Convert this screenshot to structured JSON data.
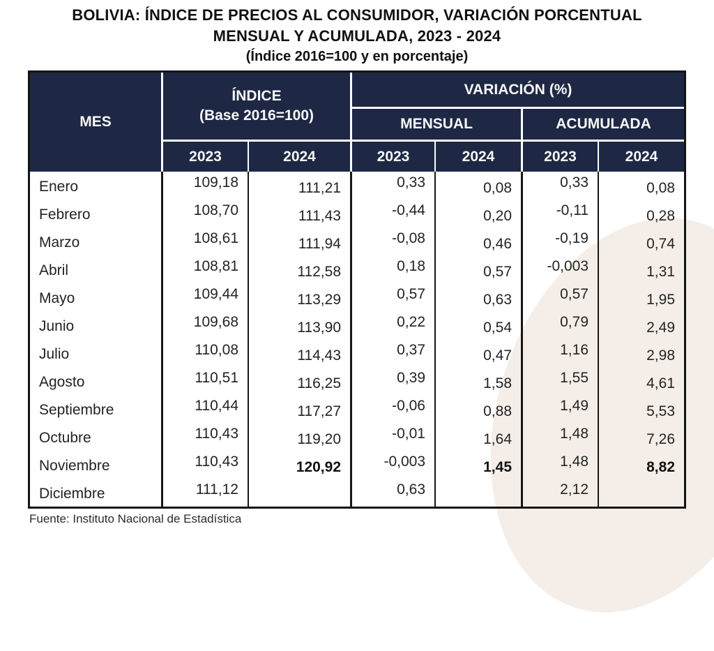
{
  "title": {
    "line1": "BOLIVIA: ÍNDICE DE PRECIOS AL CONSUMIDOR, VARIACIÓN PORCENTUAL",
    "line2": "MENSUAL Y ACUMULADA, 2023 - 2024",
    "subtitle": "(Índice 2016=100 y en porcentaje)"
  },
  "source": "Fuente: Instituto Nacional de Estadística",
  "colors": {
    "header_bg": "#1e2844",
    "header_text": "#f7f7f7",
    "border": "#141414",
    "body_text": "#232323",
    "watermark": "#f5eee8"
  },
  "table": {
    "columns": [
      "mes",
      "indice_2023",
      "indice_2024",
      "mensual_2023",
      "mensual_2024",
      "acumulada_2023",
      "acumulada_2024"
    ],
    "headers": {
      "mes": "MES",
      "indice_title": "ÍNDICE",
      "indice_base": "(Base 2016=100)",
      "variacion": "VARIACIÓN (%)",
      "mensual": "MENSUAL",
      "acumulada": "ACUMULADA",
      "years": [
        "2023",
        "2024",
        "2023",
        "2024",
        "2023",
        "2024"
      ]
    },
    "rows": [
      {
        "mes": "Enero",
        "indice_2023": "109,18",
        "indice_2024": "111,21",
        "mensual_2023": "0,33",
        "mensual_2024": "0,08",
        "acumulada_2023": "0,33",
        "acumulada_2024": "0,08"
      },
      {
        "mes": "Febrero",
        "indice_2023": "108,70",
        "indice_2024": "111,43",
        "mensual_2023": "-0,44",
        "mensual_2024": "0,20",
        "acumulada_2023": "-0,11",
        "acumulada_2024": "0,28"
      },
      {
        "mes": "Marzo",
        "indice_2023": "108,61",
        "indice_2024": "111,94",
        "mensual_2023": "-0,08",
        "mensual_2024": "0,46",
        "acumulada_2023": "-0,19",
        "acumulada_2024": "0,74"
      },
      {
        "mes": "Abril",
        "indice_2023": "108,81",
        "indice_2024": "112,58",
        "mensual_2023": "0,18",
        "mensual_2024": "0,57",
        "acumulada_2023": "-0,003",
        "acumulada_2024": "1,31"
      },
      {
        "mes": "Mayo",
        "indice_2023": "109,44",
        "indice_2024": "113,29",
        "mensual_2023": "0,57",
        "mensual_2024": "0,63",
        "acumulada_2023": "0,57",
        "acumulada_2024": "1,95"
      },
      {
        "mes": "Junio",
        "indice_2023": "109,68",
        "indice_2024": "113,90",
        "mensual_2023": "0,22",
        "mensual_2024": "0,54",
        "acumulada_2023": "0,79",
        "acumulada_2024": "2,49"
      },
      {
        "mes": "Julio",
        "indice_2023": "110,08",
        "indice_2024": "114,43",
        "mensual_2023": "0,37",
        "mensual_2024": "0,47",
        "acumulada_2023": "1,16",
        "acumulada_2024": "2,98"
      },
      {
        "mes": "Agosto",
        "indice_2023": "110,51",
        "indice_2024": "116,25",
        "mensual_2023": "0,39",
        "mensual_2024": "1,58",
        "acumulada_2023": "1,55",
        "acumulada_2024": "4,61"
      },
      {
        "mes": "Septiembre",
        "indice_2023": "110,44",
        "indice_2024": "117,27",
        "mensual_2023": "-0,06",
        "mensual_2024": "0,88",
        "acumulada_2023": "1,49",
        "acumulada_2024": "5,53"
      },
      {
        "mes": "Octubre",
        "indice_2023": "110,43",
        "indice_2024": "119,20",
        "mensual_2023": "-0,01",
        "mensual_2024": "1,64",
        "acumulada_2023": "1,48",
        "acumulada_2024": "7,26"
      },
      {
        "mes": "Noviembre",
        "indice_2023": "110,43",
        "indice_2024": "120,92",
        "mensual_2023": "-0,003",
        "mensual_2024": "1,45",
        "acumulada_2023": "1,48",
        "acumulada_2024": "8,82",
        "bold": [
          "indice_2024",
          "mensual_2024",
          "acumulada_2024"
        ]
      },
      {
        "mes": "Diciembre",
        "indice_2023": "111,12",
        "indice_2024": "",
        "mensual_2023": "0,63",
        "mensual_2024": "",
        "acumulada_2023": "2,12",
        "acumulada_2024": ""
      }
    ]
  },
  "chart_data": {
    "type": "table",
    "title": "BOLIVIA: ÍNDICE DE PRECIOS AL CONSUMIDOR, VARIACIÓN PORCENTUAL MENSUAL Y ACUMULADA, 2023 - 2024 (Índice 2016=100 y en porcentaje)",
    "columns": [
      "MES",
      "ÍNDICE (Base 2016=100) 2023",
      "ÍNDICE (Base 2016=100) 2024",
      "VARIACIÓN (%) MENSUAL 2023",
      "VARIACIÓN (%) MENSUAL 2024",
      "VARIACIÓN (%) ACUMULADA 2023",
      "VARIACIÓN (%) ACUMULADA 2024"
    ],
    "rows": [
      [
        "Enero",
        109.18,
        111.21,
        0.33,
        0.08,
        0.33,
        0.08
      ],
      [
        "Febrero",
        108.7,
        111.43,
        -0.44,
        0.2,
        -0.11,
        0.28
      ],
      [
        "Marzo",
        108.61,
        111.94,
        -0.08,
        0.46,
        -0.19,
        0.74
      ],
      [
        "Abril",
        108.81,
        112.58,
        0.18,
        0.57,
        -0.003,
        1.31
      ],
      [
        "Mayo",
        109.44,
        113.29,
        0.57,
        0.63,
        0.57,
        1.95
      ],
      [
        "Junio",
        109.68,
        113.9,
        0.22,
        0.54,
        0.79,
        2.49
      ],
      [
        "Julio",
        110.08,
        114.43,
        0.37,
        0.47,
        1.16,
        2.98
      ],
      [
        "Agosto",
        110.51,
        116.25,
        0.39,
        1.58,
        1.55,
        4.61
      ],
      [
        "Septiembre",
        110.44,
        117.27,
        -0.06,
        0.88,
        1.49,
        5.53
      ],
      [
        "Octubre",
        110.43,
        119.2,
        -0.01,
        1.64,
        1.48,
        7.26
      ],
      [
        "Noviembre",
        110.43,
        120.92,
        -0.003,
        1.45,
        1.48,
        8.82
      ],
      [
        "Diciembre",
        111.12,
        null,
        0.63,
        null,
        2.12,
        null
      ]
    ],
    "source": "Fuente: Instituto Nacional de Estadística"
  }
}
